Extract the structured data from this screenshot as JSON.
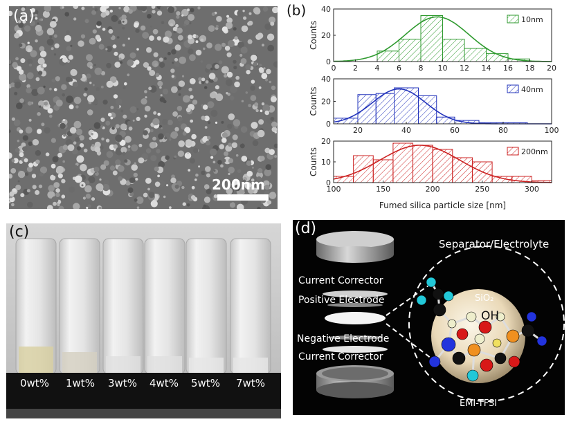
{
  "panel_a": {
    "label": "(a)",
    "scale_bar": "200nm"
  },
  "panel_b": {
    "label": "(b)",
    "xlabel": "Fumed silica particle size [nm]",
    "ylabel": "Counts"
  },
  "chart_data": [
    {
      "type": "bar",
      "legend": "10nm",
      "color": "#2e9a2e",
      "xlim": [
        0,
        20
      ],
      "ylim": [
        0,
        40
      ],
      "xticks": [
        0,
        2,
        4,
        6,
        8,
        10,
        12,
        14,
        16,
        18,
        20
      ],
      "yticks": [
        0,
        20,
        40
      ],
      "bins": [
        [
          4,
          6,
          8
        ],
        [
          6,
          8,
          17
        ],
        [
          8,
          10,
          35
        ],
        [
          10,
          12,
          17
        ],
        [
          12,
          14,
          10
        ],
        [
          14,
          16,
          6
        ],
        [
          16,
          18,
          2
        ]
      ],
      "fit_peak": 9.5,
      "fit_height": 34,
      "fit_sigma": 2.9,
      "ylabel": "Counts"
    },
    {
      "type": "bar",
      "legend": "40nm",
      "color": "#2233bb",
      "xlim": [
        10,
        100
      ],
      "ylim": [
        0,
        40
      ],
      "xticks": [
        20,
        40,
        60,
        80,
        100
      ],
      "yticks": [
        0,
        20,
        40
      ],
      "bins": [
        [
          10,
          20,
          5
        ],
        [
          20,
          27.5,
          26
        ],
        [
          27.5,
          35,
          27
        ],
        [
          35,
          45,
          32
        ],
        [
          45,
          52.5,
          25
        ],
        [
          52.5,
          60,
          6
        ],
        [
          60,
          70,
          3
        ],
        [
          70,
          80,
          1
        ],
        [
          80,
          90,
          1
        ]
      ],
      "fit_peak": 37,
      "fit_height": 31,
      "fit_sigma": 11,
      "ylabel": "Counts"
    },
    {
      "type": "bar",
      "legend": "200nm",
      "color": "#cc2222",
      "xlim": [
        100,
        320
      ],
      "ylim": [
        0,
        20
      ],
      "xticks": [
        100,
        150,
        200,
        250,
        300
      ],
      "yticks": [
        0,
        10,
        20
      ],
      "bins": [
        [
          100,
          120,
          3
        ],
        [
          120,
          140,
          13
        ],
        [
          140,
          160,
          11
        ],
        [
          160,
          180,
          19
        ],
        [
          180,
          200,
          18
        ],
        [
          200,
          220,
          16
        ],
        [
          220,
          240,
          12
        ],
        [
          240,
          260,
          10
        ],
        [
          260,
          280,
          3
        ],
        [
          280,
          300,
          3
        ],
        [
          300,
          320,
          1
        ]
      ],
      "fit_peak": 187,
      "fit_height": 18,
      "fit_sigma": 40,
      "ylabel": "Counts",
      "xlabel": "Fumed silica particle size [nm]"
    }
  ],
  "panel_c": {
    "label": "(c)",
    "vials": [
      "0wt%",
      "1wt%",
      "3wt%",
      "4wt%",
      "5wt%",
      "7wt%"
    ]
  },
  "panel_d": {
    "label": "(d)",
    "current_corrector_top": "Current Corrector",
    "positive_electrode": "Positive Electrode",
    "negative_electrode": "Negative Electrode",
    "current_corrector_bottom": "Current Corrector",
    "separator": "Separator/Electrolyte",
    "sio2": "SiO₂",
    "oh": "OH",
    "emi": "EMI-TFSI"
  }
}
